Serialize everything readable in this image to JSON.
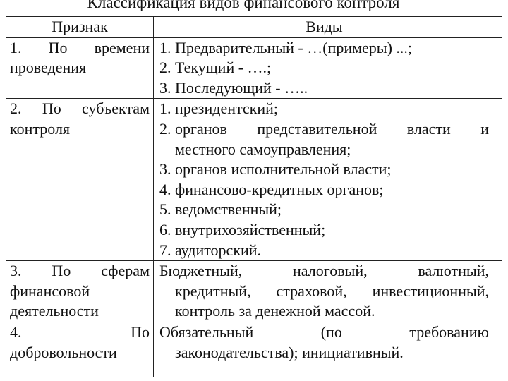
{
  "title": "Классификация видов финансового контроля",
  "headers": {
    "criterion": "Признак",
    "types": "Виды"
  },
  "rows": [
    {
      "criterion_lines": [
        "1. По времени",
        "проведения"
      ],
      "items": [
        {
          "num": "1.",
          "lines": [
            "Предварительный - …(примеры) ...;"
          ]
        },
        {
          "num": "2.",
          "lines": [
            "Текущий - ….;"
          ]
        },
        {
          "num": "3.",
          "lines": [
            "Последующий - ….."
          ]
        }
      ]
    },
    {
      "criterion_lines": [
        "2. По субъектам",
        "контроля"
      ],
      "items": [
        {
          "num": "1.",
          "lines": [
            "президентский;"
          ]
        },
        {
          "num": "2.",
          "lines": [
            "органов представительной власти и",
            "местного самоуправления;"
          ]
        },
        {
          "num": "3.",
          "lines": [
            "органов исполнительной власти;"
          ]
        },
        {
          "num": "4.",
          "lines": [
            "финансово-кредитных органов;"
          ]
        },
        {
          "num": "5.",
          "lines": [
            "ведомственный;"
          ]
        },
        {
          "num": "6.",
          "lines": [
            "внутрихозяйственный;"
          ]
        },
        {
          "num": "7.",
          "lines": [
            "аудиторский."
          ]
        }
      ]
    },
    {
      "criterion_lines": [
        "3. По сферам",
        "финансовой",
        "деятельности"
      ],
      "lines": [
        "Бюджетный, налоговый, валютный,",
        "кредитный, страховой, инвестиционный,",
        "контроль за денежной массой."
      ]
    },
    {
      "criterion_lines": [
        "4. По",
        "добровольности"
      ],
      "lines": [
        "Обязательный (по требованию",
        "законодательства); инициативный."
      ]
    }
  ]
}
